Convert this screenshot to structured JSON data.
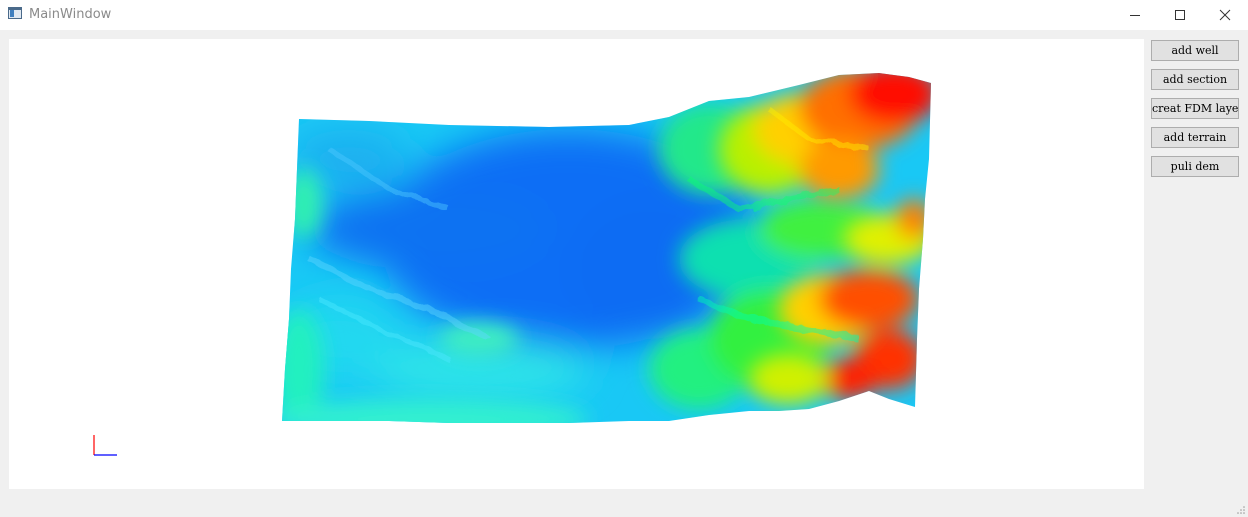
{
  "window": {
    "title": "MainWindow",
    "icon": "app-window-icon",
    "controls": {
      "minimize": "minimize-icon",
      "maximize": "maximize-icon",
      "close": "close-icon"
    }
  },
  "toolbar": {
    "buttons": [
      {
        "label": "add well"
      },
      {
        "label": "add section"
      },
      {
        "label": "creat FDM layers"
      },
      {
        "label": "add terrain"
      },
      {
        "label": "puli dem"
      }
    ]
  },
  "viewport": {
    "content": "terrain-dem-3d-render",
    "colormap": [
      "#0064ff",
      "#00c8ff",
      "#00ffcc",
      "#00ff40",
      "#ffff00",
      "#ff8000",
      "#ff0000"
    ],
    "axes_indicator": {
      "x_color": "#0000ff",
      "y_color": "#ff0000"
    }
  }
}
